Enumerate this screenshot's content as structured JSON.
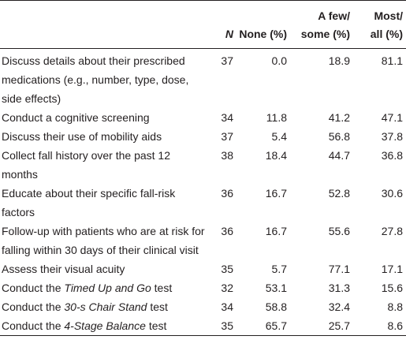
{
  "table": {
    "header": [
      {
        "lines": [
          "N"
        ],
        "italic": true
      },
      {
        "lines": [
          "None (%)"
        ]
      },
      {
        "lines": [
          "A few/",
          "some (%)"
        ]
      },
      {
        "lines": [
          "Most/",
          "all (%)"
        ]
      }
    ],
    "rows": [
      {
        "label": "Discuss details about their prescribed medications (e.g., number, type, dose, side effects)",
        "cells": [
          "37",
          "0.0",
          "18.9",
          "81.1"
        ]
      },
      {
        "label": "Conduct a cognitive screening",
        "cells": [
          "34",
          "11.8",
          "41.2",
          "47.1"
        ]
      },
      {
        "label": "Discuss their use of mobility aids",
        "cells": [
          "37",
          "5.4",
          "56.8",
          "37.8"
        ]
      },
      {
        "label": "Collect fall history over the past 12 months",
        "cells": [
          "38",
          "18.4",
          "44.7",
          "36.8"
        ]
      },
      {
        "label": "Educate about their specific fall-risk factors",
        "cells": [
          "36",
          "16.7",
          "52.8",
          "30.6"
        ]
      },
      {
        "label": "Follow-up with patients who are at risk for falling within 30 days of their clinical visit",
        "cells": [
          "36",
          "16.7",
          "55.6",
          "27.8"
        ]
      },
      {
        "label": "Assess their visual acuity",
        "cells": [
          "35",
          "5.7",
          "77.1",
          "17.1"
        ]
      },
      {
        "label": [
          {
            "text": "Conduct the"
          },
          {
            "text": "Timed Up and Go",
            "italic": true
          },
          {
            "text": "test"
          }
        ],
        "cells": [
          "32",
          "53.1",
          "31.3",
          "15.6"
        ]
      },
      {
        "label": [
          {
            "text": "Conduct the"
          },
          {
            "text": "30-s Chair Stand",
            "italic": true
          },
          {
            "text": "test"
          }
        ],
        "cells": [
          "34",
          "58.8",
          "32.4",
          "8.8"
        ]
      },
      {
        "label": [
          {
            "text": "Conduct the"
          },
          {
            "text": "4-Stage Balance",
            "italic": true
          },
          {
            "text": "test"
          }
        ],
        "cells": [
          "35",
          "65.7",
          "25.7",
          "8.6"
        ]
      }
    ]
  }
}
